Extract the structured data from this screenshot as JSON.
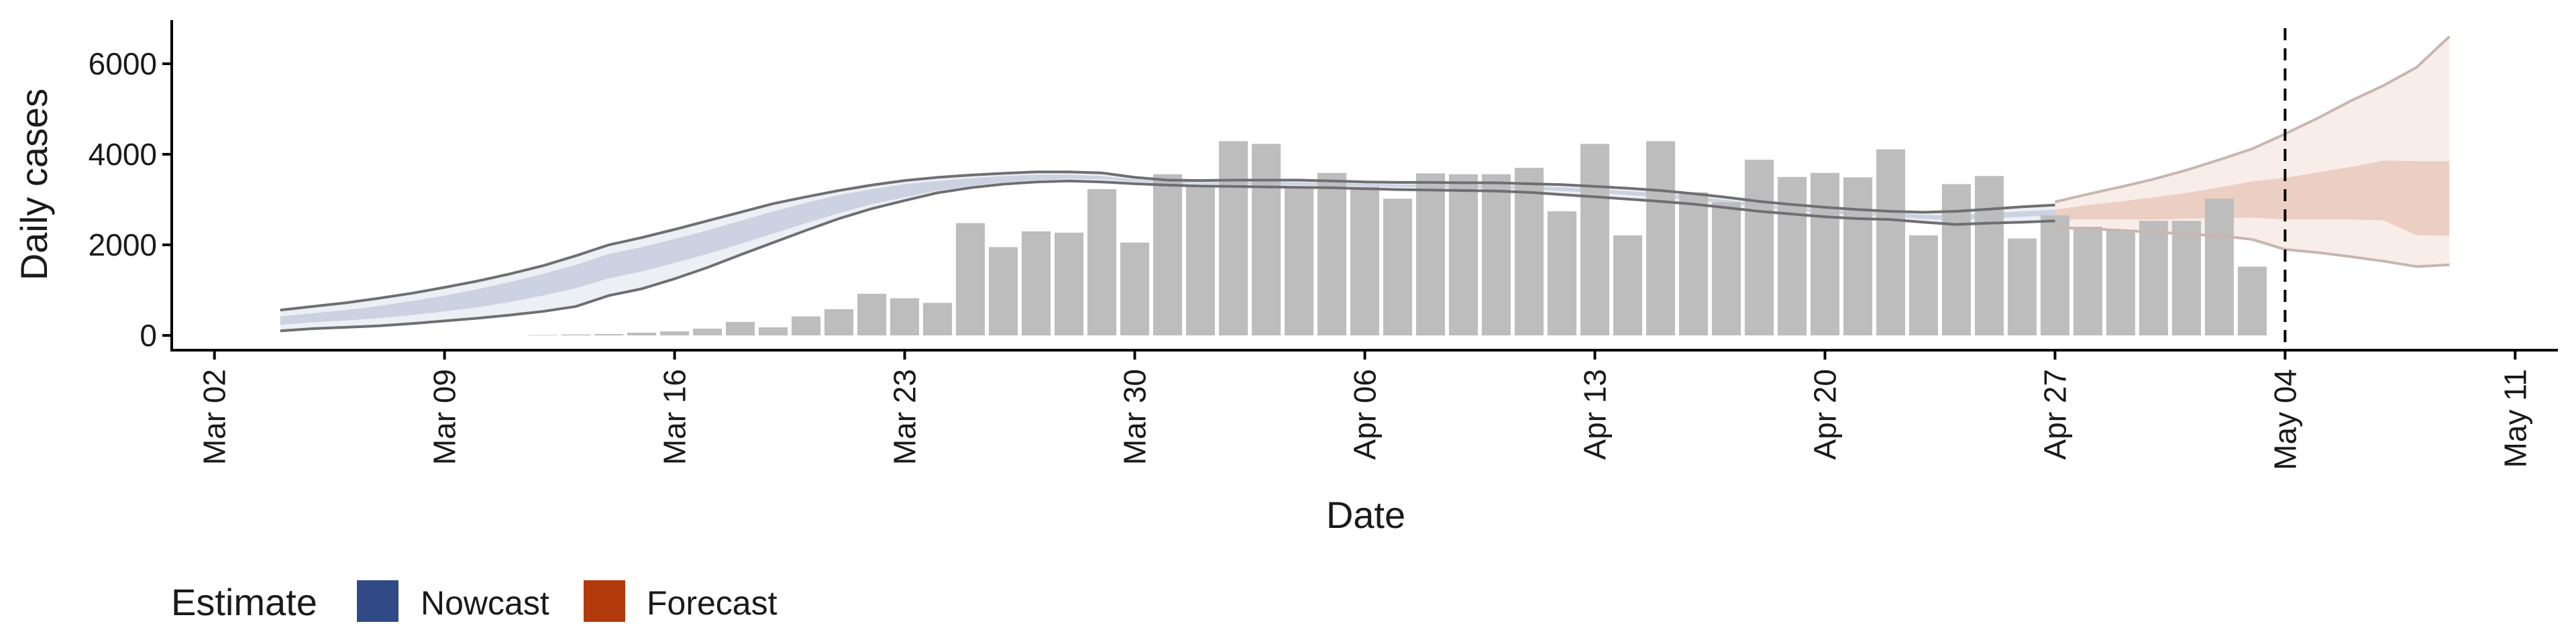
{
  "chart_data": {
    "type": "bar",
    "title": "",
    "xlabel": "Date",
    "ylabel": "Daily cases",
    "ylim": [
      0,
      6800
    ],
    "yticks": [
      0,
      2000,
      4000,
      6000
    ],
    "ytick_labels": [
      "0",
      "2000",
      "4000",
      "6000"
    ],
    "x_range_days": [
      -1.3,
      71.3
    ],
    "x_origin_date": "Mar 02",
    "xticks_days": [
      0,
      7,
      14,
      21,
      28,
      35,
      42,
      49,
      56,
      63,
      70
    ],
    "xtick_labels": [
      "Mar 02",
      "Mar 09",
      "Mar 16",
      "Mar 23",
      "Mar 30",
      "Apr 06",
      "Apr 13",
      "Apr 20",
      "Apr 27",
      "May 04",
      "May 11"
    ],
    "grid": false,
    "vline_label": "May 04",
    "vline_day": 63,
    "bars": {
      "start_date": "Mar 12",
      "start_day": 10,
      "values": [
        10,
        20,
        30,
        60,
        90,
        150,
        300,
        180,
        420,
        580,
        920,
        820,
        720,
        2480,
        1950,
        2300,
        2270,
        3230,
        2050,
        3560,
        3290,
        4290,
        4230,
        3270,
        3590,
        3280,
        3020,
        3580,
        3560,
        3560,
        3700,
        2740,
        4230,
        2210,
        4290,
        3160,
        2940,
        3880,
        3500,
        3590,
        3490,
        4110,
        2210,
        3340,
        3520,
        2140,
        2650,
        2400,
        2310,
        2530,
        2530,
        3020,
        1520
      ]
    },
    "series": [
      {
        "name": "Nowcast",
        "color": "#2f4a84",
        "x_days": [
          2,
          3,
          4,
          5,
          6,
          7,
          8,
          9,
          10,
          11,
          12,
          13,
          14,
          15,
          16,
          17,
          18,
          19,
          20,
          21,
          22,
          23,
          24,
          25,
          26,
          27,
          28,
          29,
          30,
          31,
          32,
          33,
          34,
          35,
          36,
          37,
          38,
          39,
          40,
          41,
          42,
          43,
          44,
          45,
          46,
          47,
          48,
          49,
          50,
          51,
          52,
          53,
          54,
          55,
          56
        ],
        "lower90": [
          100,
          150,
          180,
          210,
          260,
          320,
          380,
          450,
          530,
          640,
          880,
          1030,
          1250,
          1500,
          1780,
          2050,
          2320,
          2580,
          2800,
          2980,
          3150,
          3260,
          3340,
          3390,
          3410,
          3390,
          3350,
          3320,
          3300,
          3290,
          3280,
          3270,
          3260,
          3240,
          3220,
          3210,
          3200,
          3190,
          3160,
          3110,
          3060,
          3010,
          2960,
          2900,
          2820,
          2740,
          2680,
          2620,
          2580,
          2560,
          2500,
          2450,
          2480,
          2500,
          2530
        ],
        "upper90": [
          560,
          640,
          720,
          820,
          930,
          1060,
          1200,
          1360,
          1540,
          1760,
          2000,
          2160,
          2340,
          2530,
          2720,
          2910,
          3060,
          3200,
          3320,
          3420,
          3490,
          3540,
          3580,
          3610,
          3610,
          3590,
          3490,
          3430,
          3420,
          3430,
          3430,
          3430,
          3410,
          3390,
          3380,
          3380,
          3370,
          3370,
          3350,
          3330,
          3290,
          3250,
          3200,
          3130,
          3050,
          2960,
          2890,
          2830,
          2780,
          2740,
          2720,
          2740,
          2790,
          2840,
          2880
        ],
        "lower50": [
          230,
          290,
          330,
          380,
          450,
          530,
          620,
          740,
          880,
          1040,
          1260,
          1410,
          1600,
          1800,
          2020,
          2250,
          2480,
          2700,
          2900,
          3050,
          3200,
          3300,
          3380,
          3430,
          3460,
          3450,
          3400,
          3370,
          3350,
          3340,
          3330,
          3320,
          3310,
          3290,
          3280,
          3270,
          3260,
          3250,
          3230,
          3190,
          3150,
          3100,
          3050,
          2990,
          2920,
          2830,
          2760,
          2700,
          2660,
          2630,
          2570,
          2550,
          2590,
          2620,
          2650
        ],
        "upper50": [
          420,
          490,
          560,
          650,
          760,
          880,
          1020,
          1180,
          1360,
          1560,
          1800,
          1950,
          2130,
          2320,
          2530,
          2740,
          2930,
          3100,
          3230,
          3340,
          3410,
          3470,
          3520,
          3550,
          3550,
          3520,
          3440,
          3400,
          3380,
          3380,
          3380,
          3380,
          3360,
          3350,
          3330,
          3330,
          3320,
          3310,
          3290,
          3270,
          3230,
          3190,
          3140,
          3070,
          2990,
          2900,
          2830,
          2780,
          2740,
          2720,
          2660,
          2650,
          2700,
          2740,
          2780
        ]
      },
      {
        "name": "Forecast",
        "color": "#b33a0c",
        "x_days": [
          56,
          57,
          58,
          59,
          60,
          61,
          62,
          63,
          64,
          65,
          66,
          67,
          68
        ],
        "lower90": [
          2380,
          2360,
          2320,
          2280,
          2240,
          2200,
          2120,
          1900,
          1830,
          1740,
          1640,
          1520,
          1560
        ],
        "upper90": [
          2950,
          3120,
          3280,
          3450,
          3650,
          3880,
          4120,
          4450,
          4800,
          5180,
          5520,
          5920,
          6600
        ],
        "lower50": [
          2560,
          2560,
          2560,
          2560,
          2580,
          2590,
          2600,
          2560,
          2560,
          2560,
          2540,
          2210,
          2200
        ],
        "upper50": [
          2780,
          2880,
          2960,
          3050,
          3150,
          3270,
          3400,
          3480,
          3600,
          3720,
          3860,
          3850,
          3850
        ]
      }
    ],
    "legend": {
      "title": "Estimate",
      "position": "bottom-left",
      "items": [
        {
          "label": "Nowcast",
          "color": "#2f4a84"
        },
        {
          "label": "Forecast",
          "color": "#b33a0c"
        }
      ]
    }
  }
}
